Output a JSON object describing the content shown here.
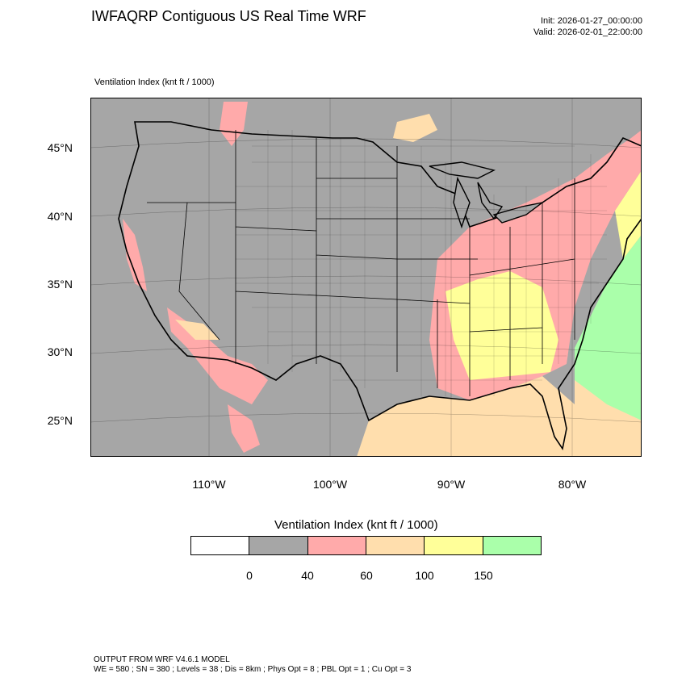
{
  "header": {
    "title": "IWFAQRP Contiguous US Real Time WRF",
    "init": "Init: 2026-01-27_00:00:00",
    "valid": "Valid: 2026-02-01_22:00:00"
  },
  "field_label": "Ventilation Index   (knt ft / 1000)",
  "map": {
    "latitude_labels": [
      "45°N",
      "40°N",
      "35°N",
      "30°N",
      "25°N"
    ],
    "longitude_labels": [
      "110°W",
      "100°W",
      "90°W",
      "80°W"
    ],
    "background_color": "#a6a6a6"
  },
  "legend": {
    "title": "Ventilation Index  (knt ft / 1000)",
    "colors": [
      "#ffffff",
      "#a6a6a6",
      "#ffaaaa",
      "#ffdead",
      "#ffff99",
      "#aaffaa"
    ],
    "ticks": [
      "0",
      "40",
      "60",
      "100",
      "150"
    ]
  },
  "footer": {
    "line1": "OUTPUT FROM WRF V4.6.1 MODEL",
    "line2": "WE = 580 ; SN = 380 ; Levels = 38 ; Dis = 8km ; Phys Opt = 8 ; PBL Opt = 1 ; Cu Opt = 3"
  }
}
